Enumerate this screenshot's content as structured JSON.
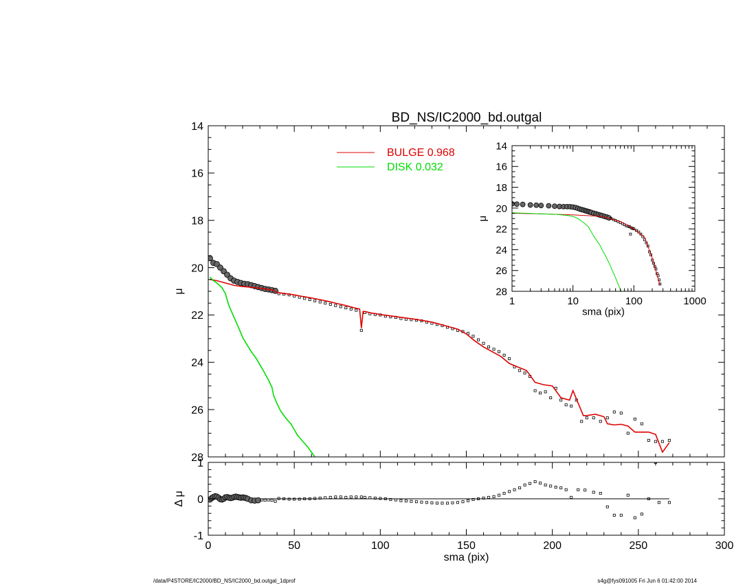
{
  "title": "BD_NS/IC2000_bd.outgal",
  "footer": {
    "left": "/data/P4STORE/IC2000/BD_NS/IC2000_bd.outgal_1dprof",
    "right": "s4g@fys091005  Fri Jun  6 01:42:00 2014"
  },
  "colors": {
    "bulge": "#dd0000",
    "disk": "#00dd00",
    "data": "#000000"
  },
  "legend": [
    {
      "label": "BULGE  0.968",
      "color": "#dd0000"
    },
    {
      "label": "DISK  0.032",
      "color": "#00dd00"
    }
  ],
  "chart_data": [
    {
      "id": "main",
      "type": "scatter",
      "xlabel": "",
      "ylabel": "μ",
      "xlim": [
        0,
        300
      ],
      "ylim": [
        28,
        14
      ],
      "yticks": [
        14,
        16,
        18,
        20,
        22,
        24,
        26,
        28
      ],
      "xticks": [
        0,
        50,
        100,
        150,
        200,
        250,
        300
      ],
      "tick_labels_x": false,
      "series": [
        {
          "kind": "points",
          "x": [
            1,
            3,
            5,
            7,
            9,
            11,
            13,
            15,
            17,
            19,
            21,
            23,
            25,
            27,
            29,
            31,
            33,
            35,
            37,
            39,
            41,
            44,
            47,
            50,
            53,
            56,
            59,
            62,
            65,
            68,
            71,
            74,
            77,
            80,
            83,
            86,
            89,
            91,
            94,
            97,
            100,
            103,
            106,
            109,
            112,
            115,
            118,
            121,
            124,
            127,
            130,
            133,
            136,
            139,
            142,
            145,
            148,
            151,
            154,
            157,
            160,
            163,
            166,
            169,
            172,
            175,
            178,
            181,
            184,
            187,
            190,
            193,
            196,
            199,
            202,
            205,
            208,
            211,
            214,
            217,
            220,
            224,
            228,
            232,
            236,
            240,
            244,
            248,
            252,
            256,
            260,
            264,
            268
          ],
          "y": [
            19.6,
            19.8,
            19.85,
            20.0,
            20.15,
            20.3,
            20.45,
            20.55,
            20.6,
            20.65,
            20.68,
            20.7,
            20.74,
            20.78,
            20.82,
            20.86,
            20.9,
            20.92,
            20.95,
            20.98,
            21.1,
            21.12,
            21.15,
            21.2,
            21.25,
            21.3,
            21.35,
            21.4,
            21.45,
            21.5,
            21.55,
            21.6,
            21.65,
            21.7,
            21.75,
            21.8,
            22.65,
            21.9,
            21.95,
            21.98,
            22.0,
            22.05,
            22.08,
            22.1,
            22.15,
            22.18,
            22.2,
            22.22,
            22.25,
            22.3,
            22.35,
            22.4,
            22.45,
            22.52,
            22.58,
            22.65,
            22.7,
            22.78,
            22.9,
            23.05,
            23.2,
            23.35,
            23.45,
            23.55,
            23.7,
            23.85,
            24.2,
            24.35,
            24.45,
            24.6,
            25.2,
            25.3,
            25.25,
            25.5,
            25.1,
            25.6,
            25.8,
            25.85,
            25.6,
            26.5,
            26.35,
            26.35,
            26.5,
            26.35,
            26.1,
            26.15,
            27.0,
            26.4,
            26.6,
            27.3,
            27.35,
            27.35,
            27.3
          ]
        },
        {
          "kind": "line",
          "name": "BULGE  0.968",
          "color": "#dd0000",
          "x": [
            1,
            5,
            10,
            15,
            20,
            25,
            30,
            35,
            38,
            40,
            45,
            50,
            55,
            60,
            65,
            70,
            75,
            80,
            85,
            88,
            89,
            90,
            91,
            95,
            100,
            110,
            120,
            130,
            140,
            145,
            150,
            155,
            160,
            165,
            170,
            175,
            180,
            185,
            190,
            195,
            200,
            205,
            210,
            212,
            216,
            218,
            220,
            225,
            230,
            232,
            236,
            240,
            244,
            248,
            252,
            256,
            260,
            264,
            268
          ],
          "y": [
            20.5,
            20.55,
            20.65,
            20.75,
            20.8,
            20.83,
            20.87,
            20.92,
            20.96,
            21.05,
            21.1,
            21.15,
            21.22,
            21.28,
            21.35,
            21.43,
            21.52,
            21.6,
            21.7,
            21.75,
            22.55,
            21.85,
            21.85,
            21.92,
            21.98,
            22.08,
            22.18,
            22.3,
            22.5,
            22.6,
            22.8,
            23.1,
            23.35,
            23.55,
            23.75,
            24.05,
            24.2,
            24.35,
            24.85,
            24.95,
            25.0,
            25.5,
            25.6,
            25.2,
            25.9,
            26.25,
            26.25,
            26.2,
            26.3,
            26.6,
            26.65,
            26.62,
            26.7,
            26.95,
            26.95,
            26.95,
            27.05,
            27.8,
            27.4
          ]
        },
        {
          "kind": "line",
          "name": "DISK  0.032",
          "color": "#00dd00",
          "x": [
            1,
            3,
            5,
            8,
            10,
            12,
            15,
            18,
            20,
            22,
            25,
            28,
            30,
            32,
            35,
            37,
            38,
            40,
            42,
            45,
            48,
            50,
            52,
            55,
            58,
            60,
            62
          ],
          "y": [
            20.4,
            20.55,
            20.65,
            20.85,
            21.1,
            21.6,
            22.1,
            22.6,
            22.95,
            23.2,
            23.55,
            23.85,
            24.1,
            24.35,
            24.75,
            25.05,
            25.4,
            25.75,
            26.05,
            26.35,
            26.6,
            26.85,
            27.1,
            27.35,
            27.6,
            27.8,
            28.0
          ]
        }
      ]
    },
    {
      "id": "residual",
      "type": "scatter",
      "xlabel": "sma (pix)",
      "ylabel": "Δ μ",
      "xlim": [
        0,
        300
      ],
      "ylim": [
        -1,
        1
      ],
      "xticks": [
        0,
        50,
        100,
        150,
        200,
        250,
        300
      ],
      "yticks": [
        -1,
        0,
        1
      ],
      "series": [
        {
          "kind": "points",
          "x": [
            1,
            2,
            3,
            4,
            5,
            6,
            7,
            8,
            9,
            10,
            11,
            12,
            13,
            14,
            15,
            16,
            17,
            18,
            19,
            20,
            21,
            22,
            23,
            25,
            27,
            29,
            31,
            33,
            35,
            37,
            39,
            41,
            44,
            47,
            50,
            53,
            56,
            59,
            62,
            65,
            68,
            71,
            74,
            77,
            80,
            83,
            86,
            89,
            91,
            94,
            97,
            100,
            103,
            106,
            109,
            112,
            115,
            118,
            121,
            124,
            127,
            130,
            133,
            136,
            139,
            142,
            145,
            148,
            151,
            154,
            157,
            160,
            163,
            166,
            169,
            172,
            175,
            178,
            181,
            184,
            187,
            190,
            193,
            196,
            199,
            202,
            205,
            208,
            211,
            215,
            219,
            224,
            228,
            232,
            236,
            240,
            244,
            248,
            252,
            256,
            260,
            262,
            268
          ],
          "y": [
            -0.02,
            0.02,
            0.05,
            0.07,
            0.06,
            0.03,
            -0.01,
            -0.02,
            0.0,
            0.04,
            0.05,
            0.03,
            0.02,
            0.03,
            0.05,
            0.06,
            0.05,
            0.04,
            0.03,
            0.04,
            0.03,
            0.02,
            0.0,
            -0.04,
            -0.05,
            -0.04,
            -0.03,
            -0.04,
            -0.03,
            -0.04,
            -0.07,
            0.01,
            0.0,
            -0.01,
            -0.01,
            -0.01,
            0.0,
            0.0,
            0.01,
            0.02,
            0.03,
            0.04,
            0.05,
            0.05,
            0.04,
            0.05,
            0.05,
            0.05,
            0.04,
            0.03,
            0.02,
            0.01,
            0.0,
            -0.02,
            -0.03,
            -0.05,
            -0.06,
            -0.07,
            -0.08,
            -0.09,
            -0.1,
            -0.11,
            -0.12,
            -0.12,
            -0.12,
            -0.11,
            -0.1,
            -0.08,
            -0.05,
            -0.02,
            0.0,
            0.02,
            0.04,
            0.06,
            0.1,
            0.15,
            0.2,
            0.25,
            0.3,
            0.38,
            0.42,
            0.47,
            0.43,
            0.38,
            0.35,
            0.32,
            0.3,
            0.25,
            0.04,
            0.25,
            0.24,
            0.18,
            0.15,
            -0.22,
            -0.45,
            -0.45,
            0.1,
            -0.52,
            -0.42,
            0.0,
            1.0,
            -0.1,
            -0.1
          ]
        }
      ]
    },
    {
      "id": "inset",
      "type": "scatter",
      "xlabel": "sma (pix)",
      "ylabel": "μ",
      "xscale": "log",
      "xlim": [
        1,
        1000
      ],
      "ylim": [
        28,
        14
      ],
      "xticks": [
        1,
        10,
        100,
        1000
      ],
      "yticks": [
        14,
        16,
        18,
        20,
        22,
        24,
        26,
        28
      ],
      "series": [
        {
          "kind": "points",
          "x": [
            1,
            1.2,
            1.5,
            2,
            2.5,
            3,
            4,
            5,
            6,
            7,
            8,
            9,
            10,
            11,
            12,
            13,
            14,
            15,
            16,
            17,
            18,
            19,
            20,
            22,
            24,
            26,
            28,
            30,
            33,
            36,
            39,
            42,
            46,
            50,
            55,
            60,
            65,
            70,
            75,
            80,
            85,
            88,
            90,
            95,
            100,
            110,
            120,
            130,
            140,
            150,
            160,
            170,
            180,
            190,
            200,
            210,
            220,
            230,
            240,
            250,
            260,
            268
          ],
          "y": [
            19.6,
            19.62,
            19.65,
            19.7,
            19.72,
            19.75,
            19.78,
            19.82,
            19.85,
            19.86,
            19.86,
            19.87,
            19.9,
            19.95,
            20.02,
            20.1,
            20.15,
            20.2,
            20.25,
            20.3,
            20.34,
            20.38,
            20.42,
            20.5,
            20.56,
            20.62,
            20.68,
            20.72,
            20.8,
            20.86,
            20.94,
            21.0,
            21.1,
            21.2,
            21.3,
            21.4,
            21.5,
            21.6,
            21.7,
            21.75,
            21.8,
            22.5,
            21.9,
            21.95,
            22.0,
            22.15,
            22.3,
            22.5,
            22.75,
            23.05,
            23.35,
            23.65,
            24.2,
            24.5,
            25.0,
            25.3,
            25.6,
            25.85,
            26.3,
            26.5,
            26.9,
            27.3
          ]
        },
        {
          "kind": "line",
          "name": "BULGE",
          "color": "#dd0000",
          "x": [
            1,
            3,
            10,
            30,
            60,
            100,
            150,
            200,
            268
          ],
          "y": [
            20.5,
            20.55,
            20.65,
            20.8,
            21.3,
            22.0,
            22.8,
            24.8,
            27.4
          ]
        },
        {
          "kind": "line",
          "name": "DISK",
          "color": "#00dd00",
          "x": [
            1,
            3,
            5,
            8,
            10,
            12,
            15,
            18,
            20,
            22,
            25,
            28,
            30,
            35,
            40,
            45,
            50,
            55,
            62
          ],
          "y": [
            20.45,
            20.55,
            20.6,
            20.7,
            20.8,
            21.0,
            21.4,
            21.8,
            22.3,
            22.7,
            23.2,
            23.6,
            24.0,
            24.7,
            25.4,
            26.1,
            26.7,
            27.3,
            28.0
          ]
        }
      ]
    }
  ]
}
